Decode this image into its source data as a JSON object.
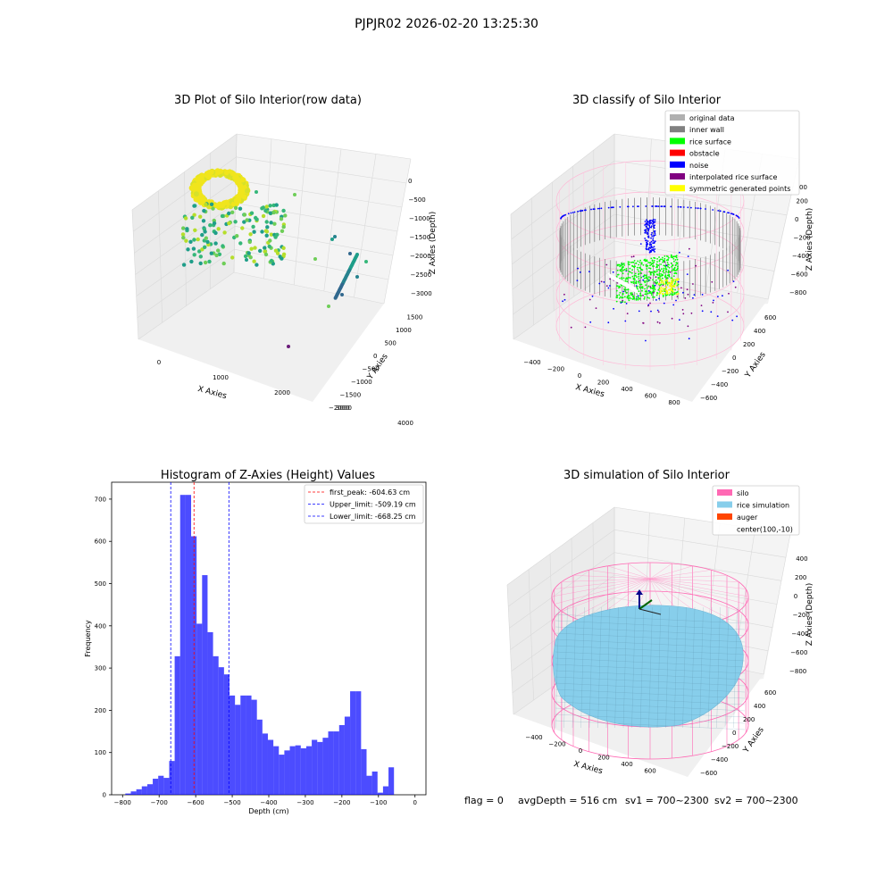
{
  "figure_title": "PJPJR02 2026-02-20 13:25:30",
  "footer": {
    "flag": "flag = 0",
    "avg_depth": "avgDepth = 516 cm",
    "sv1": "sv1 = 700~2300",
    "sv2": "sv2 = 700~2300"
  },
  "chart_data": [
    {
      "type": "scatter",
      "subtype": "3d",
      "title": "3D Plot of Silo Interior(row data)",
      "xlabel": "X Axies",
      "ylabel": "Y Axies",
      "zlabel": "Z Axies (Depth)",
      "xticks": [
        "0",
        "1000",
        "2000",
        "3000",
        "4000"
      ],
      "yticks": [
        "−2000",
        "−1500",
        "−1000",
        "−500",
        "0",
        "500",
        "1000",
        "1500"
      ],
      "zticks": [
        "−3000",
        "−2500",
        "−2000",
        "−1500",
        "−1000",
        "−500",
        "0"
      ],
      "colormap": "viridis",
      "points_x": [
        0,
        200,
        400,
        300,
        100,
        500,
        600,
        700,
        800,
        2800,
        2900,
        3000,
        3100,
        3200,
        3300,
        2600,
        1800,
        1600,
        3600
      ],
      "points_z": [
        -200,
        -500,
        -800,
        -1100,
        -1300,
        -1200,
        -1000,
        -900,
        -800,
        -2200,
        -2300,
        -2400,
        -2600,
        -2800,
        -3000,
        -1800,
        -2000,
        -2100,
        -3200
      ]
    },
    {
      "type": "scatter",
      "subtype": "3d",
      "title": "3D classify of Silo Interior",
      "xlabel": "X Axies",
      "ylabel": "Y Axies",
      "zlabel": "Z Axies (Depth)",
      "xticks": [
        "−400",
        "−200",
        "0",
        "200",
        "400",
        "600",
        "800"
      ],
      "yticks": [
        "−600",
        "−400",
        "−200",
        "0",
        "200",
        "400",
        "600"
      ],
      "zticks": [
        "−800",
        "−600",
        "−400",
        "−200",
        "0",
        "200"
      ],
      "zticks_partial": "00",
      "legend": [
        {
          "label": "original data",
          "color": "#b0b0b0"
        },
        {
          "label": "inner wall",
          "color": "#808080"
        },
        {
          "label": "rice surface",
          "color": "#00ff00"
        },
        {
          "label": "obstacle",
          "color": "#ff0000"
        },
        {
          "label": "noise",
          "color": "#0000ff"
        },
        {
          "label": "interpolated rice surface",
          "color": "#800080"
        },
        {
          "label": "symmetric generated points",
          "color": "#ffff00"
        }
      ],
      "legend_loc": "upper right"
    },
    {
      "type": "bar",
      "subtype": "histogram",
      "title": "Histogram of Z-Axies (Height) Values",
      "xlabel": "Depth (cm)",
      "ylabel": "Frequency",
      "xlim": [
        -830,
        30
      ],
      "ylim": [
        0,
        740
      ],
      "xticks": [
        -800,
        -700,
        -600,
        -500,
        -400,
        -300,
        -200,
        -100,
        0
      ],
      "yticks": [
        0,
        100,
        200,
        300,
        400,
        500,
        600,
        700
      ],
      "bar_color": "#0000ff",
      "bin_width": 15,
      "bins": [
        {
          "x": -785,
          "v": 3
        },
        {
          "x": -770,
          "v": 8
        },
        {
          "x": -755,
          "v": 13
        },
        {
          "x": -740,
          "v": 20
        },
        {
          "x": -725,
          "v": 25
        },
        {
          "x": -710,
          "v": 38
        },
        {
          "x": -695,
          "v": 45
        },
        {
          "x": -680,
          "v": 40
        },
        {
          "x": -665,
          "v": 80
        },
        {
          "x": -650,
          "v": 328
        },
        {
          "x": -635,
          "v": 710
        },
        {
          "x": -620,
          "v": 710
        },
        {
          "x": -605,
          "v": 612
        },
        {
          "x": -590,
          "v": 405
        },
        {
          "x": -575,
          "v": 520
        },
        {
          "x": -560,
          "v": 385
        },
        {
          "x": -545,
          "v": 328
        },
        {
          "x": -530,
          "v": 302
        },
        {
          "x": -515,
          "v": 285
        },
        {
          "x": -500,
          "v": 235
        },
        {
          "x": -485,
          "v": 213
        },
        {
          "x": -470,
          "v": 235
        },
        {
          "x": -455,
          "v": 235
        },
        {
          "x": -440,
          "v": 225
        },
        {
          "x": -425,
          "v": 178
        },
        {
          "x": -410,
          "v": 145
        },
        {
          "x": -395,
          "v": 130
        },
        {
          "x": -380,
          "v": 115
        },
        {
          "x": -365,
          "v": 95
        },
        {
          "x": -350,
          "v": 105
        },
        {
          "x": -335,
          "v": 115
        },
        {
          "x": -320,
          "v": 117
        },
        {
          "x": -305,
          "v": 110
        },
        {
          "x": -290,
          "v": 115
        },
        {
          "x": -275,
          "v": 130
        },
        {
          "x": -260,
          "v": 125
        },
        {
          "x": -245,
          "v": 135
        },
        {
          "x": -230,
          "v": 150
        },
        {
          "x": -215,
          "v": 150
        },
        {
          "x": -200,
          "v": 165
        },
        {
          "x": -185,
          "v": 185
        },
        {
          "x": -170,
          "v": 245
        },
        {
          "x": -155,
          "v": 245
        },
        {
          "x": -140,
          "v": 108
        },
        {
          "x": -125,
          "v": 45
        },
        {
          "x": -110,
          "v": 55
        },
        {
          "x": -95,
          "v": 5
        },
        {
          "x": -80,
          "v": 20
        },
        {
          "x": -65,
          "v": 65
        }
      ],
      "vlines": [
        {
          "label": "first_peak: -604.63 cm",
          "x": -604.63,
          "color": "#ff0000"
        },
        {
          "label": "Upper_limit: -509.19 cm",
          "x": -509.19,
          "color": "#0000ff"
        },
        {
          "label": "Lower_limit: -668.25 cm",
          "x": -668.25,
          "color": "#0000ff"
        }
      ],
      "legend_loc": "upper right"
    },
    {
      "type": "other",
      "subtype": "3d-surface",
      "title": "3D simulation of Silo Interior",
      "xlabel": "X Axies",
      "ylabel": "Y Axies",
      "zlabel": "Z Axies (Depth)",
      "xticks": [
        "−400",
        "−200",
        "0",
        "200",
        "400",
        "600"
      ],
      "yticks": [
        "−600",
        "−400",
        "−200",
        "0",
        "200",
        "400",
        "600"
      ],
      "zticks": [
        "−800",
        "−600",
        "−400",
        "−200",
        "0",
        "200",
        "400"
      ],
      "legend": [
        {
          "label": "silo",
          "color": "#ff69b4"
        },
        {
          "label": "rice simulation",
          "color": "#87ceeb"
        },
        {
          "label": "auger",
          "color": "#ff4500"
        },
        {
          "label": "center(100,-10)",
          "color": ""
        }
      ],
      "legend_loc": "upper right"
    }
  ]
}
